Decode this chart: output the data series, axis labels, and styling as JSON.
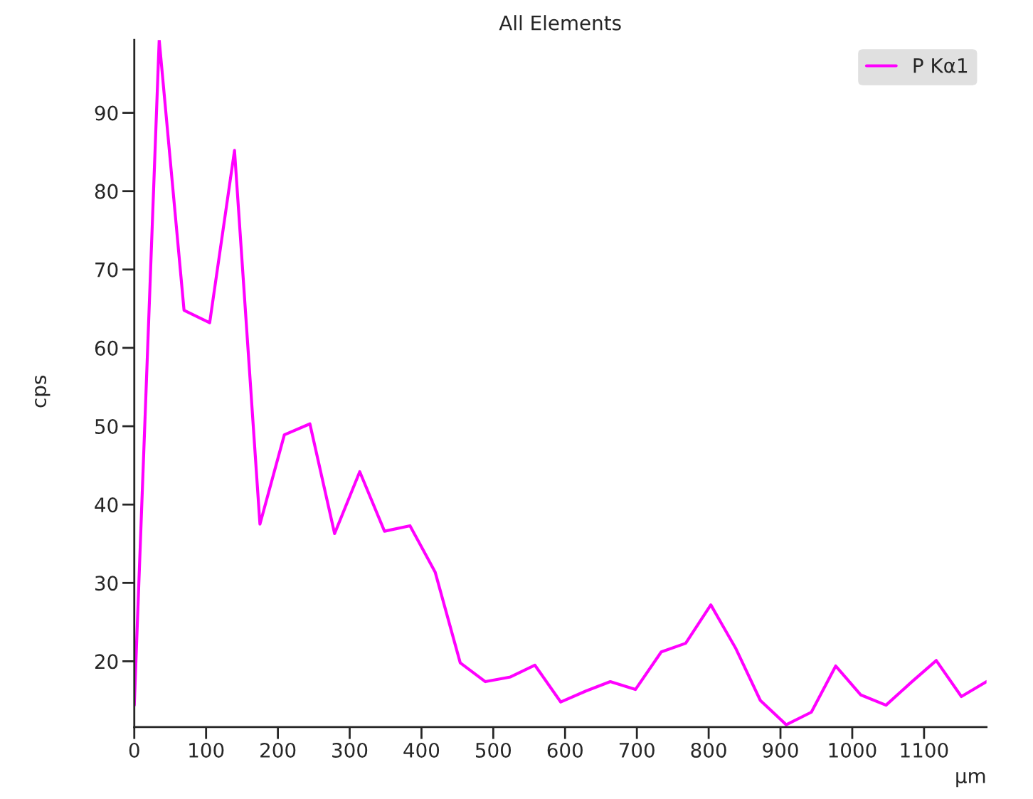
{
  "chart_data": {
    "type": "line",
    "title": "All Elements",
    "xlabel": "µm",
    "ylabel": "cps",
    "x": [
      0,
      34.7,
      69.3,
      105,
      139.6,
      175,
      209,
      244.6,
      279,
      314,
      348.5,
      384,
      419,
      454,
      489,
      524,
      558,
      594,
      629,
      663,
      698,
      734,
      768,
      803,
      838,
      872,
      908,
      943,
      977,
      1012,
      1047,
      1082,
      1117,
      1152,
      1187
    ],
    "series": [
      {
        "name": "P Kα1",
        "color": "#ff00ff",
        "values": [
          14.4,
          99.3,
          64.8,
          63.2,
          85.2,
          37.5,
          48.9,
          50.3,
          36.3,
          44.2,
          36.6,
          37.3,
          31.4,
          19.8,
          17.4,
          18.0,
          19.5,
          14.8,
          16.2,
          17.4,
          16.4,
          21.2,
          22.3,
          27.2,
          21.6,
          15.0,
          11.9,
          13.5,
          19.4,
          15.7,
          14.4,
          17.3,
          20.1,
          15.5,
          17.4
        ]
      }
    ],
    "xlim": [
      0,
      1187
    ],
    "ylim": [
      11.6,
      99.3
    ],
    "xticks": [
      0,
      100,
      200,
      300,
      400,
      500,
      600,
      700,
      800,
      900,
      1000,
      1100
    ],
    "yticks": [
      20,
      30,
      40,
      50,
      60,
      70,
      80,
      90
    ],
    "grid": false,
    "legend": "top right",
    "marker": "none",
    "line_style": "solid"
  }
}
